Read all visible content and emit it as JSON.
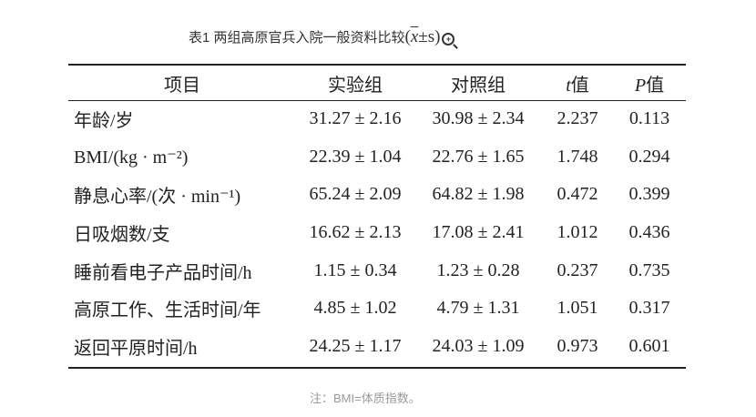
{
  "caption": {
    "text": "表1 两组高原官兵入院一般资料比较",
    "formula_x": "x",
    "formula_rest": "±s",
    "zoom_icon": "zoom-in-icon"
  },
  "table": {
    "headers": [
      "项目",
      "实验组",
      "对照组",
      "t",
      "值",
      "P",
      "值"
    ],
    "rows": [
      [
        "年龄/岁",
        "31.27 ± 2.16",
        "30.98 ± 2.34",
        "2.237",
        "0.113"
      ],
      [
        "BMI/(kg · m⁻²)",
        "22.39 ± 1.04",
        "22.76 ± 1.65",
        "1.748",
        "0.294"
      ],
      [
        "静息心率/(次 · min⁻¹)",
        "65.24 ± 2.09",
        "64.82 ± 1.98",
        "0.472",
        "0.399"
      ],
      [
        "日吸烟数/支",
        "16.62 ± 2.13",
        "17.08 ± 2.41",
        "1.012",
        "0.436"
      ],
      [
        "睡前看电子产品时间/h",
        "1.15 ± 0.34",
        "1.23 ± 0.28",
        "0.237",
        "0.735"
      ],
      [
        "高原工作、生活时间/年",
        "4.85 ± 1.02",
        "4.79 ± 1.31",
        "1.051",
        "0.317"
      ],
      [
        "返回平原时间/h",
        "24.25 ± 1.17",
        "24.03 ± 1.09",
        "0.973",
        "0.601"
      ]
    ]
  },
  "note": "注：BMI=体质指数。"
}
